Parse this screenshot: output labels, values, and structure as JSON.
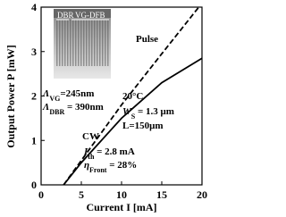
{
  "chart_data": {
    "type": "line",
    "x_label": "Current I [mA]",
    "y_label": "Output Power P [mW]",
    "xlim": [
      0,
      20
    ],
    "xticks": [
      0,
      5,
      10,
      15,
      20
    ],
    "ylim": [
      0,
      4
    ],
    "yticks": [
      0,
      1,
      2,
      3,
      4
    ],
    "series": [
      {
        "name": "Pulse",
        "color": "#000000",
        "style": "dashed",
        "x": [
          2.8,
          5,
          10,
          15,
          19.6
        ],
        "values": [
          0,
          0.55,
          1.8,
          2.95,
          4
        ]
      },
      {
        "name": "CW",
        "color": "#000000",
        "style": "solid",
        "x": [
          2.8,
          5,
          10,
          15,
          20
        ],
        "values": [
          0,
          0.5,
          1.5,
          2.3,
          2.85
        ]
      }
    ],
    "inset_labels": [
      "DBR",
      "VG-DFB"
    ],
    "annotations": [
      {
        "parts": [
          "Λ",
          "VG",
          "=245nm"
        ]
      },
      {
        "parts": [
          "Λ",
          "DBR",
          " = 390nm"
        ]
      },
      {
        "parts": [
          "20°C"
        ]
      },
      {
        "parts": [
          "W",
          "S",
          " = 1.3 μm"
        ]
      },
      {
        "parts": [
          "L=150μm"
        ]
      },
      {
        "parts": [
          "I",
          "th",
          " = 2.8 mA"
        ]
      },
      {
        "parts": [
          "η",
          "Front",
          " = 28%"
        ]
      }
    ]
  }
}
